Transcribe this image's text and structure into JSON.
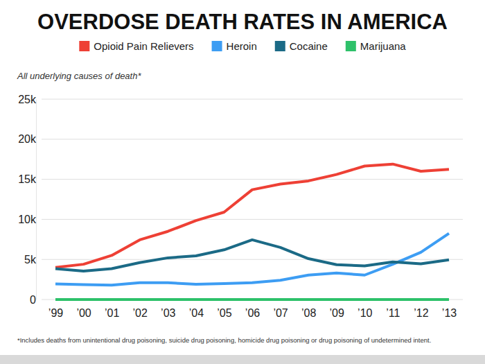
{
  "chart_data": {
    "type": "line",
    "title": "OVERDOSE DEATH RATES IN AMERICA",
    "subtitle": "All underlying causes of death*",
    "footnote": "*Includes deaths from unintentional drug poisoning, suicide drug poisoning, homicide drug poisoning or drug poisoning of undetermined intent.",
    "categories": [
      "’99",
      "’00",
      "’01",
      "’02",
      "’03",
      "’04",
      "’05",
      "’06",
      "’07",
      "’08",
      "’09",
      "’10",
      "’11",
      "’12",
      "’13"
    ],
    "series": [
      {
        "name": "Opioid Pain Relievers",
        "color": "#ee4035",
        "values": [
          4000,
          4400,
          5500,
          7450,
          8500,
          9850,
          10900,
          13700,
          14400,
          14800,
          15600,
          16650,
          16900,
          16000,
          16250
        ]
      },
      {
        "name": "Heroin",
        "color": "#3d9df3",
        "values": [
          1950,
          1850,
          1800,
          2100,
          2100,
          1900,
          2000,
          2100,
          2400,
          3050,
          3300,
          3050,
          4400,
          5900,
          8250
        ]
      },
      {
        "name": "Cocaine",
        "color": "#1b6a86",
        "values": [
          3850,
          3550,
          3850,
          4600,
          5200,
          5450,
          6200,
          7450,
          6500,
          5100,
          4350,
          4200,
          4700,
          4450,
          4950
        ]
      },
      {
        "name": "Marijuana",
        "color": "#2ec16a",
        "values": [
          0,
          0,
          0,
          0,
          0,
          0,
          0,
          0,
          0,
          0,
          0,
          0,
          0,
          0,
          0
        ]
      }
    ],
    "ylim": [
      0,
      25000
    ],
    "yticks": [
      0,
      {
        "value": 5000,
        "label": "5k"
      },
      {
        "value": 10000,
        "label": "10k"
      },
      {
        "value": 15000,
        "label": "15k"
      },
      {
        "value": 20000,
        "label": "20k"
      },
      {
        "value": 25000,
        "label": "25k"
      }
    ],
    "grid": true,
    "legend": "top"
  }
}
